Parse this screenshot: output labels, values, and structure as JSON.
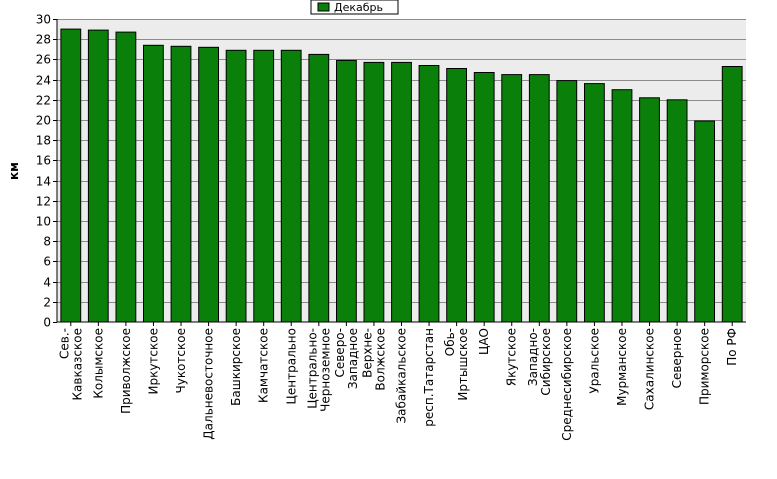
{
  "chart_data": {
    "type": "bar",
    "title": "",
    "xlabel": "",
    "ylabel": "км",
    "ylim": [
      0,
      30
    ],
    "ytick_step": 2,
    "grid": true,
    "legend_position": "top-center",
    "categories": [
      [
        "Сев.-",
        "Кавказское"
      ],
      [
        "Колымское"
      ],
      [
        "Приволжское"
      ],
      [
        "Иркутское"
      ],
      [
        "Чукотское"
      ],
      [
        "Дальневосточное"
      ],
      [
        "Башкирское"
      ],
      [
        "Камчатское"
      ],
      [
        "Центрально"
      ],
      [
        "Центрально-",
        "Черноземное"
      ],
      [
        "Северо-",
        "Западное"
      ],
      [
        "Верхне-",
        "Волжское"
      ],
      [
        "Забайкальское"
      ],
      [
        "респ.Татарстан"
      ],
      [
        "Обь-",
        "Иртышское"
      ],
      [
        "ЦАО"
      ],
      [
        "Якутское"
      ],
      [
        "Западно-",
        "Сибирское"
      ],
      [
        "Среднесибирское"
      ],
      [
        "Уральское"
      ],
      [
        "Мурманское"
      ],
      [
        "Сахалинское"
      ],
      [
        "Северное"
      ],
      [
        "Приморское"
      ],
      [
        "По РФ"
      ]
    ],
    "series": [
      {
        "name": "Декабрь",
        "color": "#0a800a",
        "values": [
          29.0,
          28.9,
          28.7,
          27.4,
          27.3,
          27.2,
          26.9,
          26.9,
          26.9,
          26.5,
          25.9,
          25.7,
          25.7,
          25.4,
          25.1,
          24.7,
          24.5,
          24.5,
          23.9,
          23.6,
          23.0,
          22.2,
          22.0,
          19.9,
          25.3
        ]
      }
    ]
  }
}
